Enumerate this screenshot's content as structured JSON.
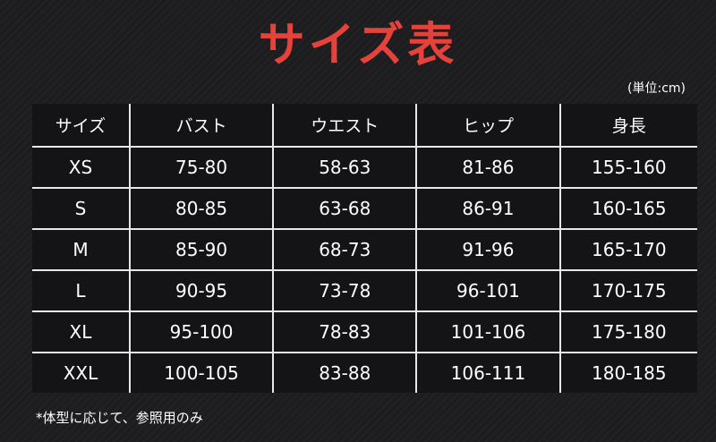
{
  "title": "サイズ表",
  "unit": "(単位:cm)",
  "colors": {
    "title": "#e5423c",
    "background": "#1d1d1f",
    "grid": "#e8e8e8"
  },
  "table": {
    "headers": [
      "サイズ",
      "バスト",
      "ウエスト",
      "ヒップ",
      "身長"
    ],
    "rows": [
      [
        "XS",
        "75-80",
        "58-63",
        "81-86",
        "155-160"
      ],
      [
        "S",
        "80-85",
        "63-68",
        "86-91",
        "160-165"
      ],
      [
        "M",
        "85-90",
        "68-73",
        "91-96",
        "165-170"
      ],
      [
        "L",
        "90-95",
        "73-78",
        "96-101",
        "170-175"
      ],
      [
        "XL",
        "95-100",
        "78-83",
        "101-106",
        "175-180"
      ],
      [
        "XXL",
        "100-105",
        "83-88",
        "106-111",
        "180-185"
      ]
    ]
  },
  "note": "*体型に応じて、参照用のみ"
}
